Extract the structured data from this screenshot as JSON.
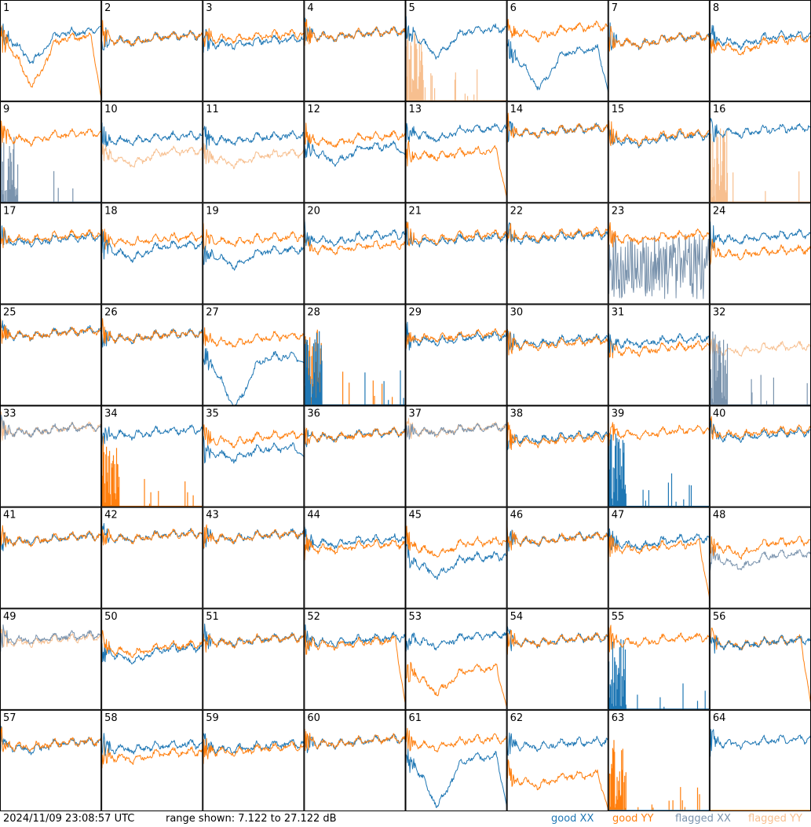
{
  "footer": {
    "timestamp": "2024/11/09 23:08:57 UTC",
    "range": "range shown: 7.122 to 27.122 dB",
    "legend": [
      "good XX",
      "good YY",
      "flagged XX",
      "flagged YY"
    ]
  },
  "colors": {
    "good_xx": "#1f77b4",
    "good_yy": "#ff7f0e",
    "flagged_xx": "#7a93ad",
    "flagged_yy": "#f7bf8f",
    "grid": "#000000",
    "background": "#ffffff"
  },
  "chart_data": {
    "type": "line",
    "grid": "8x8 small multiples",
    "ylim": [
      7.122,
      27.122
    ],
    "yunit": "dB",
    "panels": [
      {
        "id": 1,
        "xx": "good",
        "yy": "good",
        "yy_on_top": true,
        "xx_base": 20.5,
        "xx_dip": 15.5,
        "yy_base": 19.5,
        "yy_dip": 11.0,
        "xx_right": 22,
        "yy_right": 7.5
      },
      {
        "id": 2,
        "xx": "good",
        "yy": "good",
        "yy_on_top": true,
        "xx_base": 19.8,
        "xx_dip": 19.0,
        "yy_base": 19.8,
        "yy_dip": 19.0
      },
      {
        "id": 3,
        "xx": "good",
        "yy": "good",
        "yy_on_top": true,
        "xx_base": 19.0,
        "xx_dip": 18.5,
        "yy_base": 20.0,
        "yy_dip": 19.5
      },
      {
        "id": 4,
        "xx": "good",
        "yy": "good",
        "yy_on_top": true,
        "xx_base": 20.5,
        "xx_dip": 20.0,
        "yy_base": 20.5,
        "yy_dip": 20.0
      },
      {
        "id": 5,
        "xx": "good",
        "yy": "flagged",
        "yy_mode": "spikes",
        "xx_base": 21.0,
        "xx_dip": 16.5,
        "yy_base": 7.5,
        "yy_dip": 7.5
      },
      {
        "id": 6,
        "xx": "good",
        "yy": "good",
        "xx_base": 17.0,
        "xx_dip": 10.5,
        "yy_base": 21.5,
        "yy_dip": 20.0,
        "xx_right": 9.0
      },
      {
        "id": 7,
        "xx": "good",
        "yy": "good",
        "yy_on_top": true,
        "xx_base": 19.5,
        "xx_dip": 18.5,
        "yy_base": 19.5,
        "yy_dip": 18.5
      },
      {
        "id": 8,
        "xx": "good",
        "yy": "good",
        "yy_on_top": true,
        "xx_base": 19.8,
        "xx_dip": 18.5,
        "yy_base": 19.0,
        "yy_dip": 17.0
      },
      {
        "id": 9,
        "xx": "flagged",
        "xx_mode": "spikes",
        "yy": "good",
        "yy_on_top": true,
        "xx_base": 7.5,
        "xx_dip": 7.5,
        "yy_base": 20.5,
        "yy_dip": 19.5
      },
      {
        "id": 10,
        "xx": "good",
        "yy": "flagged",
        "xx_base": 20.0,
        "xx_dip": 19.5,
        "yy_base": 17.0,
        "yy_dip": 15.0
      },
      {
        "id": 11,
        "xx": "good",
        "yy": "flagged",
        "xx_base": 20.0,
        "xx_dip": 19.5,
        "yy_base": 16.5,
        "yy_dip": 15.0
      },
      {
        "id": 12,
        "xx": "good",
        "yy": "good",
        "xx_base": 18.0,
        "xx_dip": 15.5,
        "yy_base": 20.0,
        "yy_dip": 19.0,
        "xx_right": 16.5
      },
      {
        "id": 13,
        "xx": "good",
        "yy": "good",
        "yy_on_top": true,
        "xx_base": 21.5,
        "xx_dip": 20.0,
        "yy_base": 17.0,
        "yy_dip": 16.5,
        "yy_right": 8.0
      },
      {
        "id": 14,
        "xx": "good",
        "yy": "good",
        "yy_on_top": true,
        "xx_base": 21.5,
        "xx_dip": 21.0,
        "yy_base": 21.5,
        "yy_dip": 21.0
      },
      {
        "id": 15,
        "xx": "good",
        "yy": "good",
        "yy_on_top": true,
        "xx_base": 20.0,
        "xx_dip": 19.0,
        "yy_base": 20.5,
        "yy_dip": 19.5
      },
      {
        "id": 16,
        "xx": "good",
        "yy": "flagged",
        "yy_mode": "spikes",
        "xx_base": 21.5,
        "xx_dip": 21.0,
        "yy_base": 7.5,
        "yy_dip": 7.5
      },
      {
        "id": 17,
        "xx": "good",
        "yy": "good",
        "yy_on_top": true,
        "xx_base": 20.0,
        "xx_dip": 19.5,
        "yy_base": 20.5,
        "yy_dip": 20.0
      },
      {
        "id": 18,
        "xx": "good",
        "yy": "good",
        "xx_base": 18.5,
        "xx_dip": 16.5,
        "yy_base": 20.0,
        "yy_dip": 19.5
      },
      {
        "id": 19,
        "xx": "good",
        "yy": "good",
        "xx_base": 17.5,
        "xx_dip": 15.0,
        "yy_base": 20.0,
        "yy_dip": 19.5
      },
      {
        "id": 20,
        "xx": "good",
        "yy": "good",
        "xx_base": 20.5,
        "xx_dip": 19.5,
        "yy_base": 18.5,
        "yy_dip": 18.0
      },
      {
        "id": 21,
        "xx": "good",
        "yy": "good",
        "yy_on_top": true,
        "xx_base": 20.0,
        "xx_dip": 19.5,
        "yy_base": 20.5,
        "yy_dip": 20.0
      },
      {
        "id": 22,
        "xx": "good",
        "yy": "good",
        "yy_on_top": true,
        "xx_base": 20.5,
        "xx_dip": 20.0,
        "yy_base": 21.0,
        "yy_dip": 20.5
      },
      {
        "id": 23,
        "xx": "flagged",
        "xx_mode": "noise",
        "yy": "good",
        "yy_on_top": true,
        "xx_base": 12.0,
        "xx_dip": 12.0,
        "yy_base": 20.5,
        "yy_dip": 20.0
      },
      {
        "id": 24,
        "xx": "good",
        "yy": "good",
        "yy_on_top": true,
        "xx_base": 20.5,
        "xx_dip": 20.0,
        "yy_base": 17.5,
        "yy_dip": 17.0
      },
      {
        "id": 25,
        "xx": "good",
        "yy": "good",
        "yy_on_top": true,
        "xx_base": 21.5,
        "xx_dip": 21.0,
        "yy_base": 21.5,
        "yy_dip": 21.0
      },
      {
        "id": 26,
        "xx": "good",
        "yy": "good",
        "yy_on_top": true,
        "xx_base": 21.0,
        "xx_dip": 20.5,
        "yy_base": 21.0,
        "yy_dip": 20.5
      },
      {
        "id": 27,
        "xx": "good",
        "yy": "good",
        "xx_base": 16.5,
        "xx_dip": 7.5,
        "yy_base": 20.5,
        "yy_dip": 19.5,
        "xx_right": 15.5
      },
      {
        "id": 28,
        "xx": "good",
        "xx_mode": "spikes",
        "yy": "good",
        "yy_mode": "spikes",
        "xx_base": 7.5,
        "xx_dip": 7.5,
        "yy_base": 7.5,
        "yy_dip": 7.5
      },
      {
        "id": 29,
        "xx": "good",
        "yy": "good",
        "yy_on_top": true,
        "xx_base": 20.5,
        "xx_dip": 20.0,
        "yy_base": 21.0,
        "yy_dip": 20.5
      },
      {
        "id": 30,
        "xx": "good",
        "yy": "good",
        "yy_on_top": true,
        "xx_base": 20.0,
        "xx_dip": 19.5,
        "yy_base": 19.5,
        "yy_dip": 19.0
      },
      {
        "id": 31,
        "xx": "good",
        "yy": "good",
        "xx_base": 20.0,
        "xx_dip": 19.5,
        "yy_base": 18.5,
        "yy_dip": 18.0
      },
      {
        "id": 32,
        "xx": "flagged",
        "xx_mode": "spikes",
        "yy": "flagged",
        "xx_base": 7.5,
        "xx_dip": 7.5,
        "yy_base": 18.5,
        "yy_dip": 18.0
      },
      {
        "id": 33,
        "xx": "flagged",
        "yy": "flagged",
        "xx_base": 22.5,
        "xx_dip": 22.0,
        "yy_base": 22.5,
        "yy_dip": 22.0
      },
      {
        "id": 34,
        "xx": "good",
        "yy": "good",
        "yy_mode": "spikes",
        "xx_base": 22.0,
        "xx_dip": 21.5,
        "yy_base": 7.5,
        "yy_dip": 7.5
      },
      {
        "id": 35,
        "xx": "good",
        "yy": "good",
        "xx_base": 18.5,
        "xx_dip": 17.0,
        "yy_base": 21.0,
        "yy_dip": 20.0,
        "xx_right": 17.0
      },
      {
        "id": 36,
        "xx": "good",
        "yy": "good",
        "yy_on_top": true,
        "xx_base": 21.5,
        "xx_dip": 21.0,
        "yy_base": 21.5,
        "yy_dip": 21.0
      },
      {
        "id": 37,
        "xx": "flagged",
        "yy": "flagged",
        "xx_base": 22.5,
        "xx_dip": 22.0,
        "yy_base": 22.5,
        "yy_dip": 22.0
      },
      {
        "id": 38,
        "xx": "good",
        "yy": "good",
        "yy_on_top": true,
        "xx_base": 21.0,
        "xx_dip": 20.5,
        "yy_base": 20.5,
        "yy_dip": 20.0
      },
      {
        "id": 39,
        "xx": "good",
        "xx_mode": "spikes",
        "yy": "good",
        "yy_on_top": true,
        "xx_base": 7.5,
        "xx_dip": 7.5,
        "yy_base": 22.0,
        "yy_dip": 21.5
      },
      {
        "id": 40,
        "xx": "good",
        "yy": "good",
        "yy_on_top": true,
        "xx_base": 21.5,
        "xx_dip": 21.0,
        "yy_base": 22.0,
        "yy_dip": 21.5
      },
      {
        "id": 41,
        "xx": "good",
        "yy": "good",
        "yy_on_top": true,
        "xx_base": 21.0,
        "xx_dip": 20.5,
        "yy_base": 21.0,
        "yy_dip": 20.5
      },
      {
        "id": 42,
        "xx": "good",
        "yy": "good",
        "yy_on_top": true,
        "xx_base": 21.5,
        "xx_dip": 21.0,
        "yy_base": 21.5,
        "yy_dip": 21.0
      },
      {
        "id": 43,
        "xx": "good",
        "yy": "good",
        "yy_on_top": true,
        "xx_base": 21.5,
        "xx_dip": 21.0,
        "yy_base": 21.5,
        "yy_dip": 21.0
      },
      {
        "id": 44,
        "xx": "good",
        "yy": "good",
        "yy_on_top": true,
        "xx_base": 20.5,
        "xx_dip": 20.0,
        "yy_base": 19.5,
        "yy_dip": 19.0
      },
      {
        "id": 45,
        "xx": "good",
        "yy": "good",
        "xx_base": 17.0,
        "xx_dip": 14.0,
        "yy_base": 20.0,
        "yy_dip": 18.0
      },
      {
        "id": 46,
        "xx": "good",
        "yy": "good",
        "yy_on_top": true,
        "xx_base": 21.0,
        "xx_dip": 20.5,
        "yy_base": 21.0,
        "yy_dip": 20.5
      },
      {
        "id": 47,
        "xx": "good",
        "yy": "good",
        "yy_on_top": true,
        "xx_base": 20.5,
        "xx_dip": 19.5,
        "yy_base": 19.5,
        "yy_dip": 19.0,
        "yy_right": 9.0
      },
      {
        "id": 48,
        "xx": "flagged",
        "yy": "good",
        "yy_on_top": true,
        "xx_base": 17.5,
        "xx_dip": 15.5,
        "yy_base": 20.0,
        "yy_dip": 18.0
      },
      {
        "id": 49,
        "xx": "flagged",
        "yy": "flagged",
        "xx_base": 21.5,
        "xx_dip": 21.0,
        "yy_base": 21.0,
        "yy_dip": 20.5
      },
      {
        "id": 50,
        "xx": "good",
        "yy": "good",
        "yy_on_top": true,
        "xx_base": 19.0,
        "xx_dip": 17.0,
        "yy_base": 19.5,
        "yy_dip": 18.5
      },
      {
        "id": 51,
        "xx": "good",
        "yy": "good",
        "yy_on_top": true,
        "xx_base": 21.0,
        "xx_dip": 20.5,
        "yy_base": 21.0,
        "yy_dip": 20.5
      },
      {
        "id": 52,
        "xx": "good",
        "yy": "good",
        "yy_on_top": true,
        "xx_base": 21.0,
        "xx_dip": 20.5,
        "yy_base": 20.5,
        "yy_dip": 20.0,
        "yy_right": 8.0
      },
      {
        "id": 53,
        "xx": "good",
        "yy": "good",
        "yy_on_top": true,
        "xx_base": 21.5,
        "xx_dip": 20.0,
        "yy_base": 15.0,
        "yy_dip": 11.0,
        "yy_right": 7.5
      },
      {
        "id": 54,
        "xx": "good",
        "yy": "good",
        "yy_on_top": true,
        "xx_base": 21.0,
        "xx_dip": 20.5,
        "yy_base": 21.0,
        "yy_dip": 20.5
      },
      {
        "id": 55,
        "xx": "good",
        "xx_mode": "spikes",
        "yy": "good",
        "yy_on_top": true,
        "xx_base": 7.5,
        "xx_dip": 7.5,
        "yy_base": 21.0,
        "yy_dip": 20.5
      },
      {
        "id": 56,
        "xx": "good",
        "yy": "good",
        "xx_base": 20.5,
        "xx_dip": 20.0,
        "yy_base": 20.5,
        "yy_dip": 20.0,
        "yy_right": 8.0
      },
      {
        "id": 57,
        "xx": "good",
        "yy": "good",
        "yy_on_top": true,
        "xx_base": 20.5,
        "xx_dip": 19.5,
        "yy_base": 20.5,
        "yy_dip": 20.0
      },
      {
        "id": 58,
        "xx": "good",
        "yy": "good",
        "xx_base": 20.0,
        "xx_dip": 19.5,
        "yy_base": 18.5,
        "yy_dip": 17.5
      },
      {
        "id": 59,
        "xx": "good",
        "yy": "good",
        "yy_on_top": true,
        "xx_base": 20.0,
        "xx_dip": 19.5,
        "yy_base": 19.5,
        "yy_dip": 19.0
      },
      {
        "id": 60,
        "xx": "good",
        "yy": "good",
        "yy_on_top": true,
        "xx_base": 21.0,
        "xx_dip": 20.5,
        "yy_base": 21.0,
        "yy_dip": 20.5
      },
      {
        "id": 61,
        "xx": "good",
        "yy": "good",
        "xx_base": 17.5,
        "xx_dip": 9.0,
        "yy_base": 21.0,
        "yy_dip": 20.0,
        "xx_right": 8.0
      },
      {
        "id": 62,
        "xx": "good",
        "yy": "good",
        "yy_on_top": true,
        "xx_base": 20.5,
        "xx_dip": 20.0,
        "yy_base": 14.0,
        "yy_dip": 12.5,
        "yy_right": 7.5
      },
      {
        "id": 63,
        "xx": "good",
        "xx_mode": "empty",
        "yy": "good",
        "yy_mode": "spikes",
        "xx_base": 7.5,
        "xx_dip": 7.5,
        "yy_base": 7.5,
        "yy_dip": 7.5
      },
      {
        "id": 64,
        "xx": "good",
        "yy": "good",
        "yy_mode": "empty",
        "xx_base": 21.0,
        "xx_dip": 20.5,
        "yy_base": 7.5,
        "yy_dip": 7.5
      }
    ]
  }
}
